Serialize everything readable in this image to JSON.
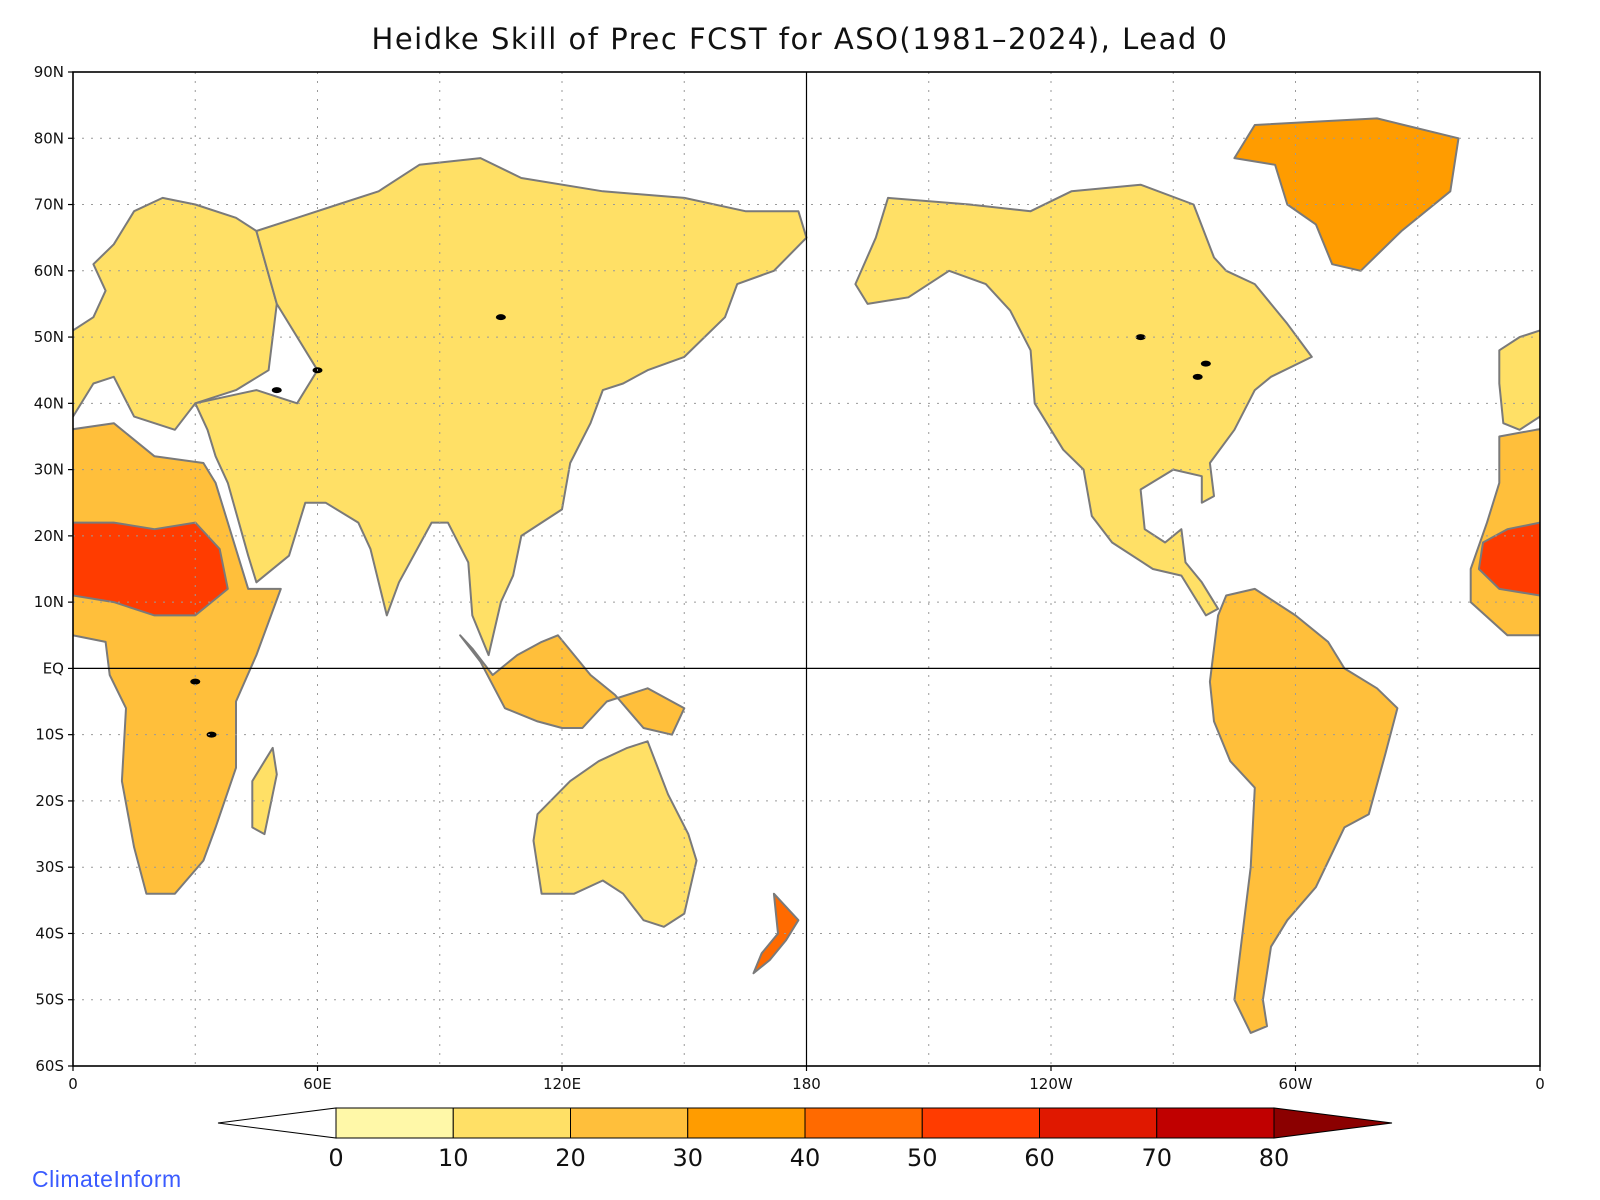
{
  "title": "Heidke Skill of Prec FCST for ASO(1981–2024), Lead 0",
  "credit": "ClimateInform",
  "map": {
    "projection": "equirectangular",
    "lon_range": [
      0,
      360
    ],
    "lat_range": [
      -60,
      90
    ],
    "grid": true,
    "center_lines": [
      "EQ",
      "180"
    ],
    "ocean_color": "#ffffff",
    "coastline_color": "#7a7a7a",
    "lakes_color": "#000000"
  },
  "axes": {
    "lat_ticks": [
      "90N",
      "80N",
      "70N",
      "60N",
      "50N",
      "40N",
      "30N",
      "20N",
      "10N",
      "EQ",
      "10S",
      "20S",
      "30S",
      "40S",
      "50S",
      "60S"
    ],
    "lon_ticks": [
      "0",
      "60E",
      "120E",
      "180",
      "120W",
      "60W",
      "0"
    ]
  },
  "colorbar": {
    "labels": [
      "0",
      "10",
      "20",
      "30",
      "40",
      "50",
      "60",
      "70",
      "80"
    ],
    "colors": [
      "#fff8a8",
      "#ffe066",
      "#ffbf3b",
      "#ff9c00",
      "#ff6a00",
      "#ff3c00",
      "#e01800",
      "#c00000",
      "#a00000"
    ],
    "below_color": "#ffffff",
    "above_color": "#8b0000"
  },
  "regions": [
    {
      "name": "North America",
      "level": 1
    },
    {
      "name": "Greenland",
      "level": 3
    },
    {
      "name": "South America",
      "level": 2
    },
    {
      "name": "Europe",
      "level": 1
    },
    {
      "name": "Asia",
      "level": 1
    },
    {
      "name": "Africa",
      "level": 2
    },
    {
      "name": "Sahel",
      "level": 5
    },
    {
      "name": "Australia",
      "level": 1
    },
    {
      "name": "Indonesia",
      "level": 2
    },
    {
      "name": "New Zealand",
      "level": 4
    },
    {
      "name": "Madagascar",
      "level": 1
    }
  ]
}
